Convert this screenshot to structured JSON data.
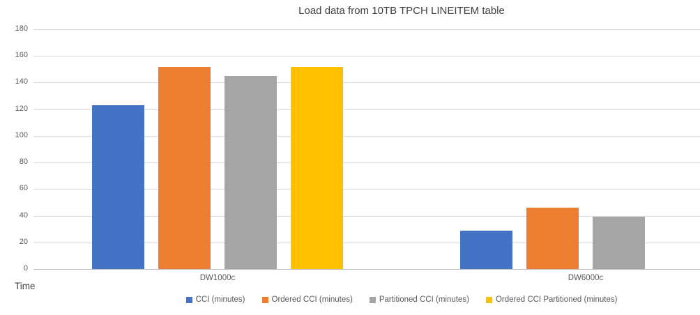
{
  "chart_data": {
    "type": "bar",
    "title": "Load data from 10TB TPCH LINEITEM table",
    "axis_title": "Time",
    "categories": [
      "DW1000c",
      "DW6000c"
    ],
    "series": [
      {
        "name": "CCI (minutes)",
        "color": "#4472C4",
        "values": [
          123,
          29
        ]
      },
      {
        "name": "Ordered CCI (minutes)",
        "color": "#ED7D31",
        "values": [
          152,
          46
        ]
      },
      {
        "name": "Partitioned CCI (minutes)",
        "color": "#A5A5A5",
        "values": [
          145,
          39
        ]
      },
      {
        "name": "Ordered CCI Partitioned (minutes)",
        "color": "#FFC000",
        "values": [
          152,
          null
        ]
      }
    ],
    "ylim": [
      0,
      180
    ],
    "y_ticks": [
      0,
      20,
      40,
      60,
      80,
      100,
      120,
      140,
      160,
      180
    ],
    "grid": true,
    "legend_position": "bottom",
    "ui_colors": {
      "gridline": "#d9d9d9",
      "axis_line": "#bfbfbf",
      "axis_text": "#595959",
      "title_text": "#3f3f3f"
    }
  }
}
